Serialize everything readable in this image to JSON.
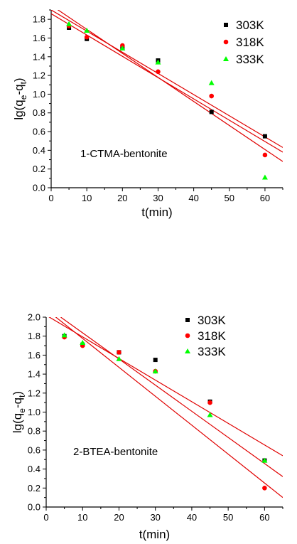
{
  "chart_data": [
    {
      "type": "scatter",
      "annotation": "1-CTMA-bentonite",
      "xlabel": "t(min)",
      "ylabel": {
        "base": "lg(q",
        "sub1": "e",
        "mid": "-q",
        "sub2": "t",
        "end": ")"
      },
      "xlim": [
        0,
        65
      ],
      "ylim": [
        0,
        1.9
      ],
      "xticks": [
        0,
        10,
        20,
        30,
        40,
        50,
        60
      ],
      "yticks": [
        0.0,
        0.2,
        0.4,
        0.6,
        0.8,
        1.0,
        1.2,
        1.4,
        1.6,
        1.8
      ],
      "legend": "top-right",
      "series": [
        {
          "name": "303K",
          "marker": "square",
          "color": "#000000",
          "x": [
            5,
            10,
            20,
            30,
            45,
            60
          ],
          "y": [
            1.71,
            1.59,
            1.49,
            1.36,
            0.81,
            0.55
          ],
          "fit": {
            "x": [
              0,
              65
            ],
            "y": [
              1.9,
              0.43
            ]
          }
        },
        {
          "name": "318K",
          "marker": "circle",
          "color": "#ff0000",
          "x": [
            5,
            10,
            20,
            30,
            45,
            60
          ],
          "y": [
            1.73,
            1.61,
            1.52,
            1.24,
            0.98,
            0.35
          ],
          "fit": {
            "x": [
              0,
              65
            ],
            "y": [
              1.86,
              0.38
            ]
          }
        },
        {
          "name": "333K",
          "marker": "triangle",
          "color": "#00ff00",
          "x": [
            5,
            10,
            20,
            30,
            45,
            60
          ],
          "y": [
            1.75,
            1.68,
            1.49,
            1.34,
            1.12,
            0.11
          ],
          "fit": {
            "x": [
              0,
              65
            ],
            "y": [
              1.95,
              0.28
            ]
          }
        }
      ]
    },
    {
      "type": "scatter",
      "annotation": "2-BTEA-bentonite",
      "xlabel": "t(min)",
      "ylabel": {
        "base": "lg(q",
        "sub1": "e",
        "mid": "-q",
        "sub2": "t",
        "end": ")"
      },
      "xlim": [
        0,
        65
      ],
      "ylim": [
        0,
        2.0
      ],
      "xticks": [
        0,
        10,
        20,
        30,
        40,
        50,
        60
      ],
      "yticks": [
        0.0,
        0.2,
        0.4,
        0.6,
        0.8,
        1.0,
        1.2,
        1.4,
        1.6,
        1.8,
        2.0
      ],
      "legend": "top-right",
      "series": [
        {
          "name": "303K",
          "marker": "square",
          "color": "#000000",
          "x": [
            5,
            10,
            20,
            30,
            45,
            60
          ],
          "y": [
            1.8,
            1.71,
            1.63,
            1.55,
            1.11,
            0.49
          ],
          "fit": {
            "x": [
              0,
              65
            ],
            "y": [
              2.02,
              0.54
            ]
          }
        },
        {
          "name": "318K",
          "marker": "circle",
          "color": "#ff0000",
          "x": [
            5,
            10,
            20,
            30,
            45,
            60
          ],
          "y": [
            1.79,
            1.7,
            1.63,
            1.43,
            1.1,
            0.2
          ],
          "fit": {
            "x": [
              2,
              65
            ],
            "y": [
              2.02,
              0.1
            ]
          }
        },
        {
          "name": "333K",
          "marker": "triangle",
          "color": "#00ff00",
          "x": [
            5,
            10,
            20,
            30,
            45,
            60
          ],
          "y": [
            1.81,
            1.73,
            1.56,
            1.43,
            0.97,
            0.49
          ],
          "fit": {
            "x": [
              4,
              65
            ],
            "y": [
              2.0,
              0.32
            ]
          }
        }
      ]
    }
  ]
}
